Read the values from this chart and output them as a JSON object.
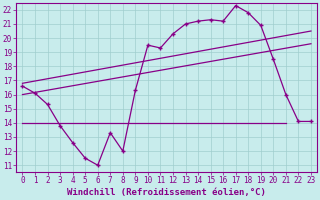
{
  "xlabel": "Windchill (Refroidissement éolien,°C)",
  "bg_color": "#c8ecec",
  "grid_color": "#a0cece",
  "line_color": "#880088",
  "xlim": [
    -0.5,
    23.5
  ],
  "ylim": [
    10.5,
    22.5
  ],
  "xticks": [
    0,
    1,
    2,
    3,
    4,
    5,
    6,
    7,
    8,
    9,
    10,
    11,
    12,
    13,
    14,
    15,
    16,
    17,
    18,
    19,
    20,
    21,
    22,
    23
  ],
  "yticks": [
    11,
    12,
    13,
    14,
    15,
    16,
    17,
    18,
    19,
    20,
    21,
    22
  ],
  "jagged_x": [
    0,
    1,
    2,
    3,
    4,
    5,
    6,
    7,
    8,
    9,
    10,
    11,
    12,
    13,
    14,
    15,
    16,
    17,
    18,
    19,
    20,
    21,
    22,
    23
  ],
  "jagged_y": [
    16.6,
    16.1,
    15.3,
    13.8,
    12.6,
    11.5,
    11.0,
    13.3,
    12.0,
    16.3,
    19.5,
    19.3,
    20.3,
    21.0,
    21.2,
    21.3,
    21.2,
    22.3,
    21.8,
    20.9,
    18.5,
    16.0,
    14.1,
    14.1
  ],
  "upper_line_x": [
    0,
    23
  ],
  "upper_line_y": [
    16.8,
    20.5
  ],
  "lower_line_x": [
    0,
    23
  ],
  "lower_line_y": [
    16.0,
    19.6
  ],
  "flat_line_x": [
    0,
    21
  ],
  "flat_line_y": [
    14.0,
    14.0
  ],
  "tick_fontsize": 5.5,
  "xlabel_fontsize": 6.5
}
